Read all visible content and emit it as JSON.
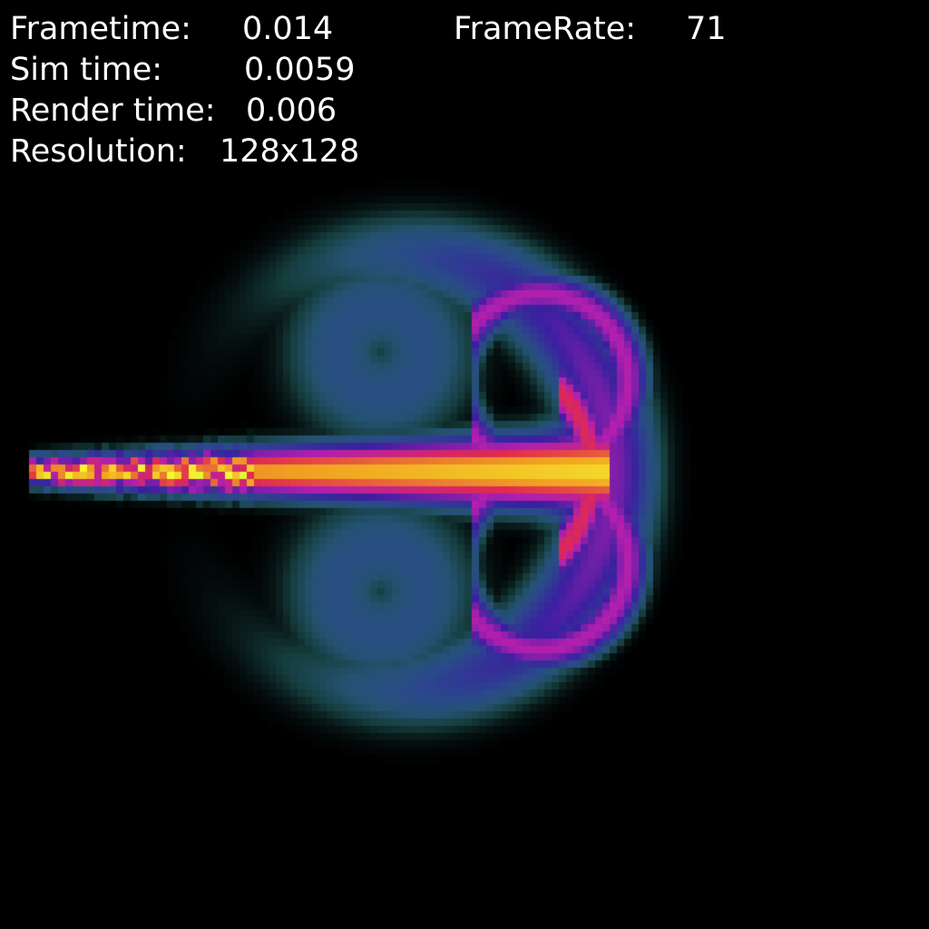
{
  "hud": {
    "frametime": {
      "label": "Frametime:",
      "value": "0.014"
    },
    "framerate": {
      "label": "FrameRate:",
      "value": "71"
    },
    "sim_time": {
      "label": "Sim time:",
      "value": "0.0059"
    },
    "render_time": {
      "label": "Render time:",
      "value": "0.006"
    },
    "resolution": {
      "label": "Resolution:",
      "value": "128x128"
    }
  },
  "simulation": {
    "grid_resolution": 128,
    "background_color": "#000000",
    "text_color": "#ffffff",
    "colormap": [
      "#000000",
      "#1f5a5a",
      "#2a4a8a",
      "#3a1fa0",
      "#b01fb0",
      "#e02a50",
      "#f0a020",
      "#f8f830",
      "#80f040",
      "#30e0e0"
    ]
  }
}
